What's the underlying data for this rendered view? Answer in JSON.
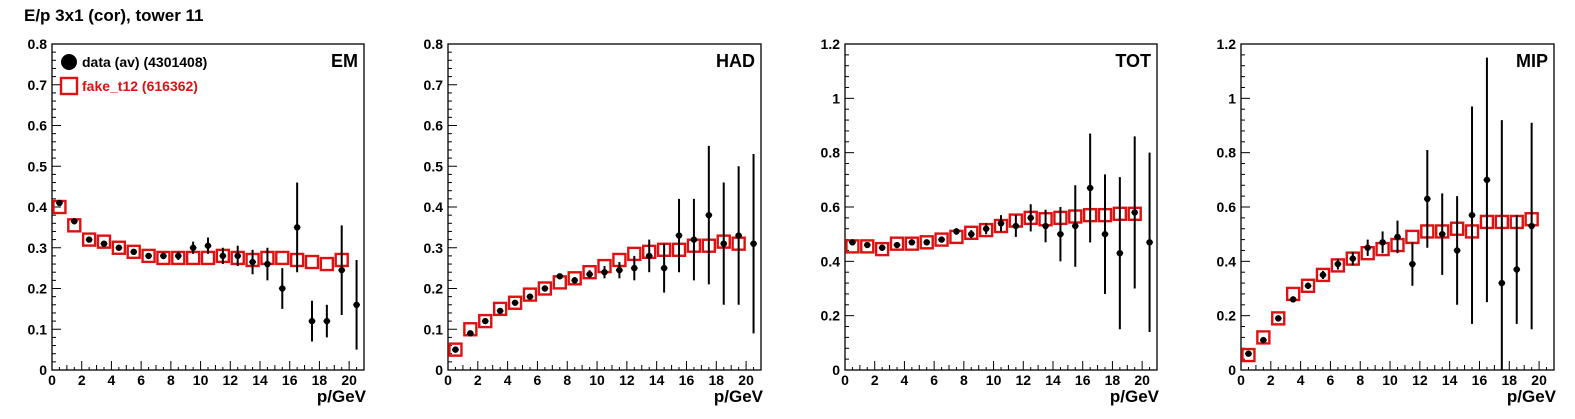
{
  "figure": {
    "title": "E/p 3x1 (cor), tower 11"
  },
  "chart_data": [
    {
      "type": "scatter",
      "panel": "EM",
      "xlabel": "p/GeV",
      "ylabel": "",
      "xlim": [
        0,
        21
      ],
      "ylim": [
        0,
        0.8
      ],
      "xticks": [
        0,
        2,
        4,
        6,
        8,
        10,
        12,
        14,
        16,
        18,
        20
      ],
      "yticks": [
        0,
        0.1,
        0.2,
        0.3,
        0.4,
        0.5,
        0.6,
        0.7,
        0.8
      ],
      "ytick_labels": [
        "0",
        "0.1",
        "0.2",
        "0.3",
        "0.4",
        "0.5",
        "0.6",
        "0.7",
        "0.8"
      ],
      "legend": [
        {
          "label": "data (av) (4301408)",
          "marker": "filled-circle",
          "color": "#000000"
        },
        {
          "label": "fake_t12 (616362)",
          "marker": "open-square",
          "color": "#dd1111"
        }
      ],
      "series": [
        {
          "name": "data (av) (4301408)",
          "x": [
            0.5,
            1.5,
            2.5,
            3.5,
            4.5,
            5.5,
            6.5,
            7.5,
            8.5,
            9.5,
            10.5,
            11.5,
            12.5,
            13.5,
            14.5,
            15.5,
            16.5,
            17.5,
            18.5,
            19.5,
            20.5
          ],
          "y": [
            0.41,
            0.365,
            0.32,
            0.31,
            0.3,
            0.29,
            0.28,
            0.28,
            0.28,
            0.3,
            0.305,
            0.28,
            0.28,
            0.265,
            0.26,
            0.2,
            0.35,
            0.12,
            0.12,
            0.245,
            0.16
          ],
          "yerr": [
            0.005,
            0.005,
            0.005,
            0.005,
            0.005,
            0.005,
            0.006,
            0.008,
            0.01,
            0.015,
            0.02,
            0.02,
            0.025,
            0.03,
            0.04,
            0.05,
            0.11,
            0.05,
            0.04,
            0.11,
            0.11
          ]
        },
        {
          "name": "fake_t12 (616362)",
          "x": [
            0.5,
            1.5,
            2.5,
            3.5,
            4.5,
            5.5,
            6.5,
            7.5,
            8.5,
            9.5,
            10.5,
            11.5,
            12.5,
            13.5,
            14.5,
            15.5,
            16.5,
            17.5,
            18.5,
            19.5
          ],
          "y": [
            0.4,
            0.355,
            0.32,
            0.315,
            0.3,
            0.29,
            0.28,
            0.275,
            0.275,
            0.275,
            0.275,
            0.28,
            0.275,
            0.27,
            0.275,
            0.275,
            0.27,
            0.265,
            0.26,
            0.27
          ]
        }
      ]
    },
    {
      "type": "scatter",
      "panel": "HAD",
      "xlabel": "p/GeV",
      "ylabel": "",
      "xlim": [
        0,
        21
      ],
      "ylim": [
        0,
        0.8
      ],
      "xticks": [
        0,
        2,
        4,
        6,
        8,
        10,
        12,
        14,
        16,
        18,
        20
      ],
      "yticks": [
        0,
        0.1,
        0.2,
        0.3,
        0.4,
        0.5,
        0.6,
        0.7,
        0.8
      ],
      "ytick_labels": [
        "0",
        "0.1",
        "0.2",
        "0.3",
        "0.4",
        "0.5",
        "0.6",
        "0.7",
        "0.8"
      ],
      "series": [
        {
          "name": "data",
          "x": [
            0.5,
            1.5,
            2.5,
            3.5,
            4.5,
            5.5,
            6.5,
            7.5,
            8.5,
            9.5,
            10.5,
            11.5,
            12.5,
            13.5,
            14.5,
            15.5,
            16.5,
            17.5,
            18.5,
            19.5,
            20.5
          ],
          "y": [
            0.05,
            0.09,
            0.12,
            0.145,
            0.165,
            0.18,
            0.2,
            0.23,
            0.22,
            0.235,
            0.24,
            0.245,
            0.25,
            0.28,
            0.25,
            0.33,
            0.32,
            0.38,
            0.31,
            0.33,
            0.31
          ],
          "yerr": [
            0.005,
            0.005,
            0.005,
            0.005,
            0.005,
            0.005,
            0.006,
            0.006,
            0.008,
            0.01,
            0.015,
            0.02,
            0.03,
            0.04,
            0.06,
            0.09,
            0.1,
            0.17,
            0.15,
            0.17,
            0.22
          ]
        },
        {
          "name": "fake",
          "x": [
            0.5,
            1.5,
            2.5,
            3.5,
            4.5,
            5.5,
            6.5,
            7.5,
            8.5,
            9.5,
            10.5,
            11.5,
            12.5,
            13.5,
            14.5,
            15.5,
            16.5,
            17.5,
            18.5,
            19.5
          ],
          "y": [
            0.05,
            0.1,
            0.12,
            0.15,
            0.165,
            0.185,
            0.2,
            0.215,
            0.225,
            0.24,
            0.255,
            0.27,
            0.285,
            0.29,
            0.295,
            0.295,
            0.305,
            0.305,
            0.315,
            0.31
          ]
        }
      ]
    },
    {
      "type": "scatter",
      "panel": "TOT",
      "xlabel": "p/GeV",
      "ylabel": "",
      "xlim": [
        0,
        21
      ],
      "ylim": [
        0,
        1.2
      ],
      "xticks": [
        0,
        2,
        4,
        6,
        8,
        10,
        12,
        14,
        16,
        18,
        20
      ],
      "yticks": [
        0,
        0.2,
        0.4,
        0.6,
        0.8,
        1.0,
        1.2
      ],
      "ytick_labels": [
        "0",
        "0.2",
        "0.4",
        "0.6",
        "0.8",
        "1",
        "1.2"
      ],
      "series": [
        {
          "name": "data",
          "x": [
            0.5,
            1.5,
            2.5,
            3.5,
            4.5,
            5.5,
            6.5,
            7.5,
            8.5,
            9.5,
            10.5,
            11.5,
            12.5,
            13.5,
            14.5,
            15.5,
            16.5,
            17.5,
            18.5,
            19.5,
            20.5
          ],
          "y": [
            0.47,
            0.46,
            0.45,
            0.46,
            0.47,
            0.47,
            0.48,
            0.51,
            0.5,
            0.52,
            0.54,
            0.53,
            0.56,
            0.53,
            0.5,
            0.53,
            0.67,
            0.5,
            0.43,
            0.58,
            0.47
          ],
          "yerr": [
            0.005,
            0.005,
            0.005,
            0.006,
            0.007,
            0.008,
            0.01,
            0.012,
            0.015,
            0.02,
            0.03,
            0.04,
            0.05,
            0.06,
            0.1,
            0.15,
            0.2,
            0.22,
            0.28,
            0.28,
            0.33
          ]
        },
        {
          "name": "fake",
          "x": [
            0.5,
            1.5,
            2.5,
            3.5,
            4.5,
            5.5,
            6.5,
            7.5,
            8.5,
            9.5,
            10.5,
            11.5,
            12.5,
            13.5,
            14.5,
            15.5,
            16.5,
            17.5,
            18.5,
            19.5
          ],
          "y": [
            0.455,
            0.455,
            0.445,
            0.465,
            0.465,
            0.47,
            0.48,
            0.49,
            0.505,
            0.515,
            0.53,
            0.55,
            0.56,
            0.555,
            0.56,
            0.565,
            0.57,
            0.57,
            0.575,
            0.575
          ]
        }
      ]
    },
    {
      "type": "scatter",
      "panel": "MIP",
      "xlabel": "p/GeV",
      "ylabel": "",
      "xlim": [
        0,
        21
      ],
      "ylim": [
        0,
        1.2
      ],
      "xticks": [
        0,
        2,
        4,
        6,
        8,
        10,
        12,
        14,
        16,
        18,
        20
      ],
      "yticks": [
        0,
        0.2,
        0.4,
        0.6,
        0.8,
        1.0,
        1.2
      ],
      "ytick_labels": [
        "0",
        "0.2",
        "0.4",
        "0.6",
        "0.8",
        "1",
        "1.2"
      ],
      "series": [
        {
          "name": "data",
          "x": [
            0.5,
            1.5,
            2.5,
            3.5,
            4.5,
            5.5,
            6.5,
            7.5,
            8.5,
            9.5,
            10.5,
            11.5,
            12.5,
            13.5,
            14.5,
            15.5,
            16.5,
            17.5,
            18.5,
            19.5
          ],
          "y": [
            0.06,
            0.11,
            0.19,
            0.26,
            0.31,
            0.35,
            0.39,
            0.41,
            0.45,
            0.47,
            0.49,
            0.39,
            0.63,
            0.5,
            0.44,
            0.57,
            0.7,
            0.32,
            0.37,
            0.53
          ],
          "yerr": [
            0.005,
            0.006,
            0.008,
            0.01,
            0.012,
            0.015,
            0.02,
            0.025,
            0.03,
            0.04,
            0.06,
            0.08,
            0.18,
            0.15,
            0.2,
            0.4,
            0.45,
            0.6,
            0.2,
            0.38
          ]
        },
        {
          "name": "fake",
          "x": [
            0.5,
            1.5,
            2.5,
            3.5,
            4.5,
            5.5,
            6.5,
            7.5,
            8.5,
            9.5,
            10.5,
            11.5,
            12.5,
            13.5,
            14.5,
            15.5,
            16.5,
            17.5,
            18.5,
            19.5
          ],
          "y": [
            0.055,
            0.12,
            0.19,
            0.28,
            0.31,
            0.35,
            0.385,
            0.41,
            0.43,
            0.445,
            0.46,
            0.49,
            0.51,
            0.51,
            0.52,
            0.51,
            0.545,
            0.545,
            0.545,
            0.555
          ]
        }
      ]
    }
  ]
}
